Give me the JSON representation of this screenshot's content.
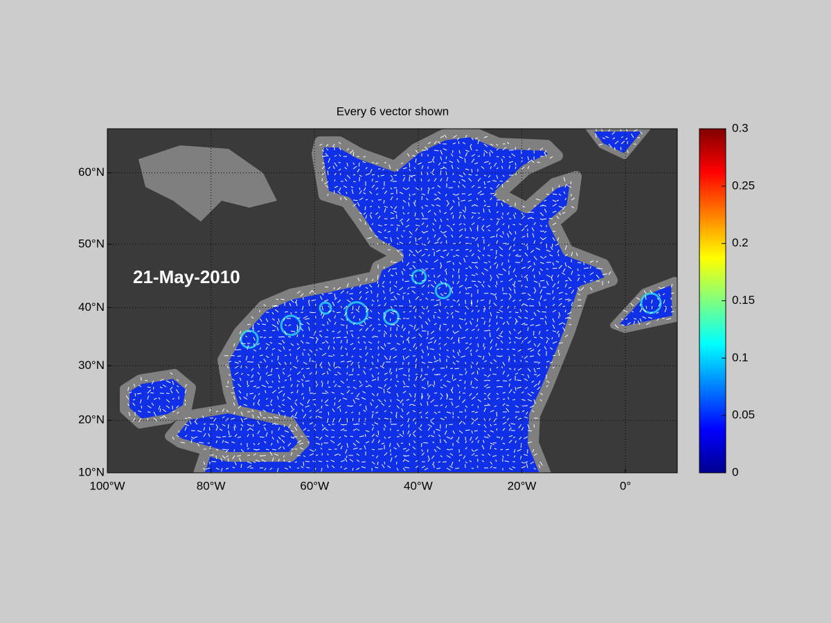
{
  "map": {
    "type": "vector-field",
    "title": "Every 6 vector shown",
    "date": "21-May-2010",
    "projection": "miller",
    "xlim": [
      -100,
      10
    ],
    "xticks": [
      {
        "value": -100,
        "label": "100°W"
      },
      {
        "value": -80,
        "label": "80°W"
      },
      {
        "value": -60,
        "label": "60°W"
      },
      {
        "value": -40,
        "label": "40°W"
      },
      {
        "value": -20,
        "label": "20°W"
      },
      {
        "value": 0,
        "label": "0°"
      }
    ],
    "ylim": [
      10,
      65.5
    ],
    "yticks": [
      {
        "value": 10,
        "label": "10°N"
      },
      {
        "value": 20,
        "label": "20°N"
      },
      {
        "value": 30,
        "label": "30°N"
      },
      {
        "value": 40,
        "label": "40°N"
      },
      {
        "value": 50,
        "label": "50°N"
      },
      {
        "value": 60,
        "label": "60°N"
      }
    ],
    "grid": true,
    "colorbar": {
      "colormap": "jet",
      "lim": [
        0,
        0.3
      ],
      "ticks": [
        0,
        0.05,
        0.1,
        0.15,
        0.2,
        0.25,
        0.3
      ]
    }
  }
}
